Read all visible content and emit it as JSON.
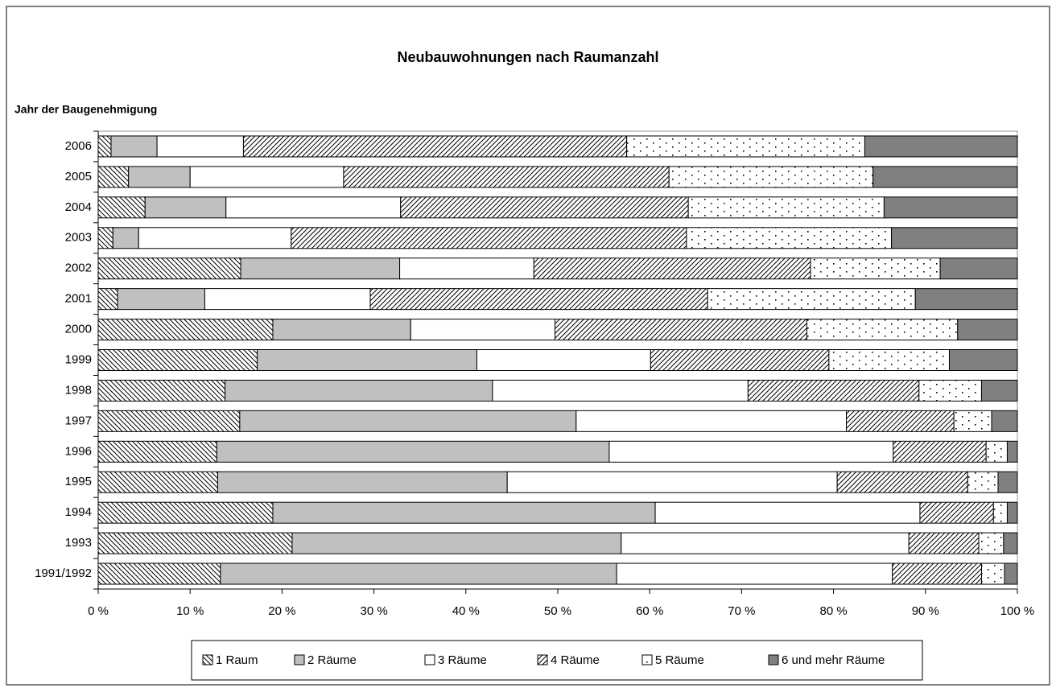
{
  "chart_data": {
    "type": "stacked-barh",
    "title": "Neubauwohnungen nach Raumanzahl",
    "y_label": "Jahr der Baugenehmigung",
    "categories": [
      "2006",
      "2005",
      "2004",
      "2003",
      "2002",
      "2001",
      "2000",
      "1999",
      "1998",
      "1997",
      "1996",
      "1995",
      "1994",
      "1993",
      "1991/1992"
    ],
    "series": [
      {
        "name": "1 Raum",
        "color": "#ffffff",
        "pattern": "backslash-hatch",
        "values": [
          1.4,
          3.3,
          5.1,
          1.6,
          15.5,
          2.1,
          19.0,
          17.3,
          13.8,
          15.4,
          12.9,
          13.0,
          19.0,
          21.1,
          13.3
        ]
      },
      {
        "name": "2 Räume",
        "color": "#c0c0c0",
        "pattern": "solid",
        "values": [
          5.0,
          6.7,
          8.8,
          2.8,
          17.3,
          9.5,
          15.0,
          23.9,
          29.1,
          36.6,
          42.7,
          31.5,
          41.6,
          35.8,
          43.1
        ]
      },
      {
        "name": "3 Räume",
        "color": "#ffffff",
        "pattern": "solid",
        "values": [
          9.4,
          16.7,
          19.0,
          16.6,
          14.6,
          18.0,
          15.7,
          18.9,
          27.8,
          29.4,
          30.9,
          35.9,
          28.8,
          31.3,
          30.0
        ]
      },
      {
        "name": "4 Räume",
        "color": "#ffffff",
        "pattern": "slash-hatch",
        "values": [
          41.7,
          35.4,
          31.3,
          43.0,
          30.1,
          36.7,
          27.4,
          19.4,
          18.6,
          11.7,
          10.1,
          14.2,
          8.0,
          7.6,
          9.7
        ]
      },
      {
        "name": "5 Räume",
        "color": "#ffffff",
        "pattern": "dots",
        "values": [
          25.9,
          22.2,
          21.3,
          22.3,
          14.1,
          22.6,
          16.4,
          13.1,
          6.8,
          4.1,
          2.3,
          3.3,
          1.5,
          2.7,
          2.5
        ]
      },
      {
        "name": "6 und mehr Räume",
        "color": "#808080",
        "pattern": "solid",
        "values": [
          16.6,
          15.7,
          14.5,
          13.7,
          8.4,
          11.1,
          6.5,
          7.4,
          3.9,
          2.8,
          1.1,
          2.1,
          1.1,
          1.5,
          1.4
        ]
      }
    ],
    "xlim": [
      0,
      100
    ],
    "xticks": [
      {
        "value": 0,
        "label": "0 %"
      },
      {
        "value": 10,
        "label": "10 %"
      },
      {
        "value": 20,
        "label": "20 %"
      },
      {
        "value": 30,
        "label": "30 %"
      },
      {
        "value": 40,
        "label": "40 %"
      },
      {
        "value": 50,
        "label": "50 %"
      },
      {
        "value": 60,
        "label": "60 %"
      },
      {
        "value": 70,
        "label": "70 %"
      },
      {
        "value": 80,
        "label": "80 %"
      },
      {
        "value": 90,
        "label": "90 %"
      },
      {
        "value": 100,
        "label": "100 %"
      }
    ],
    "legend": "bottom"
  }
}
